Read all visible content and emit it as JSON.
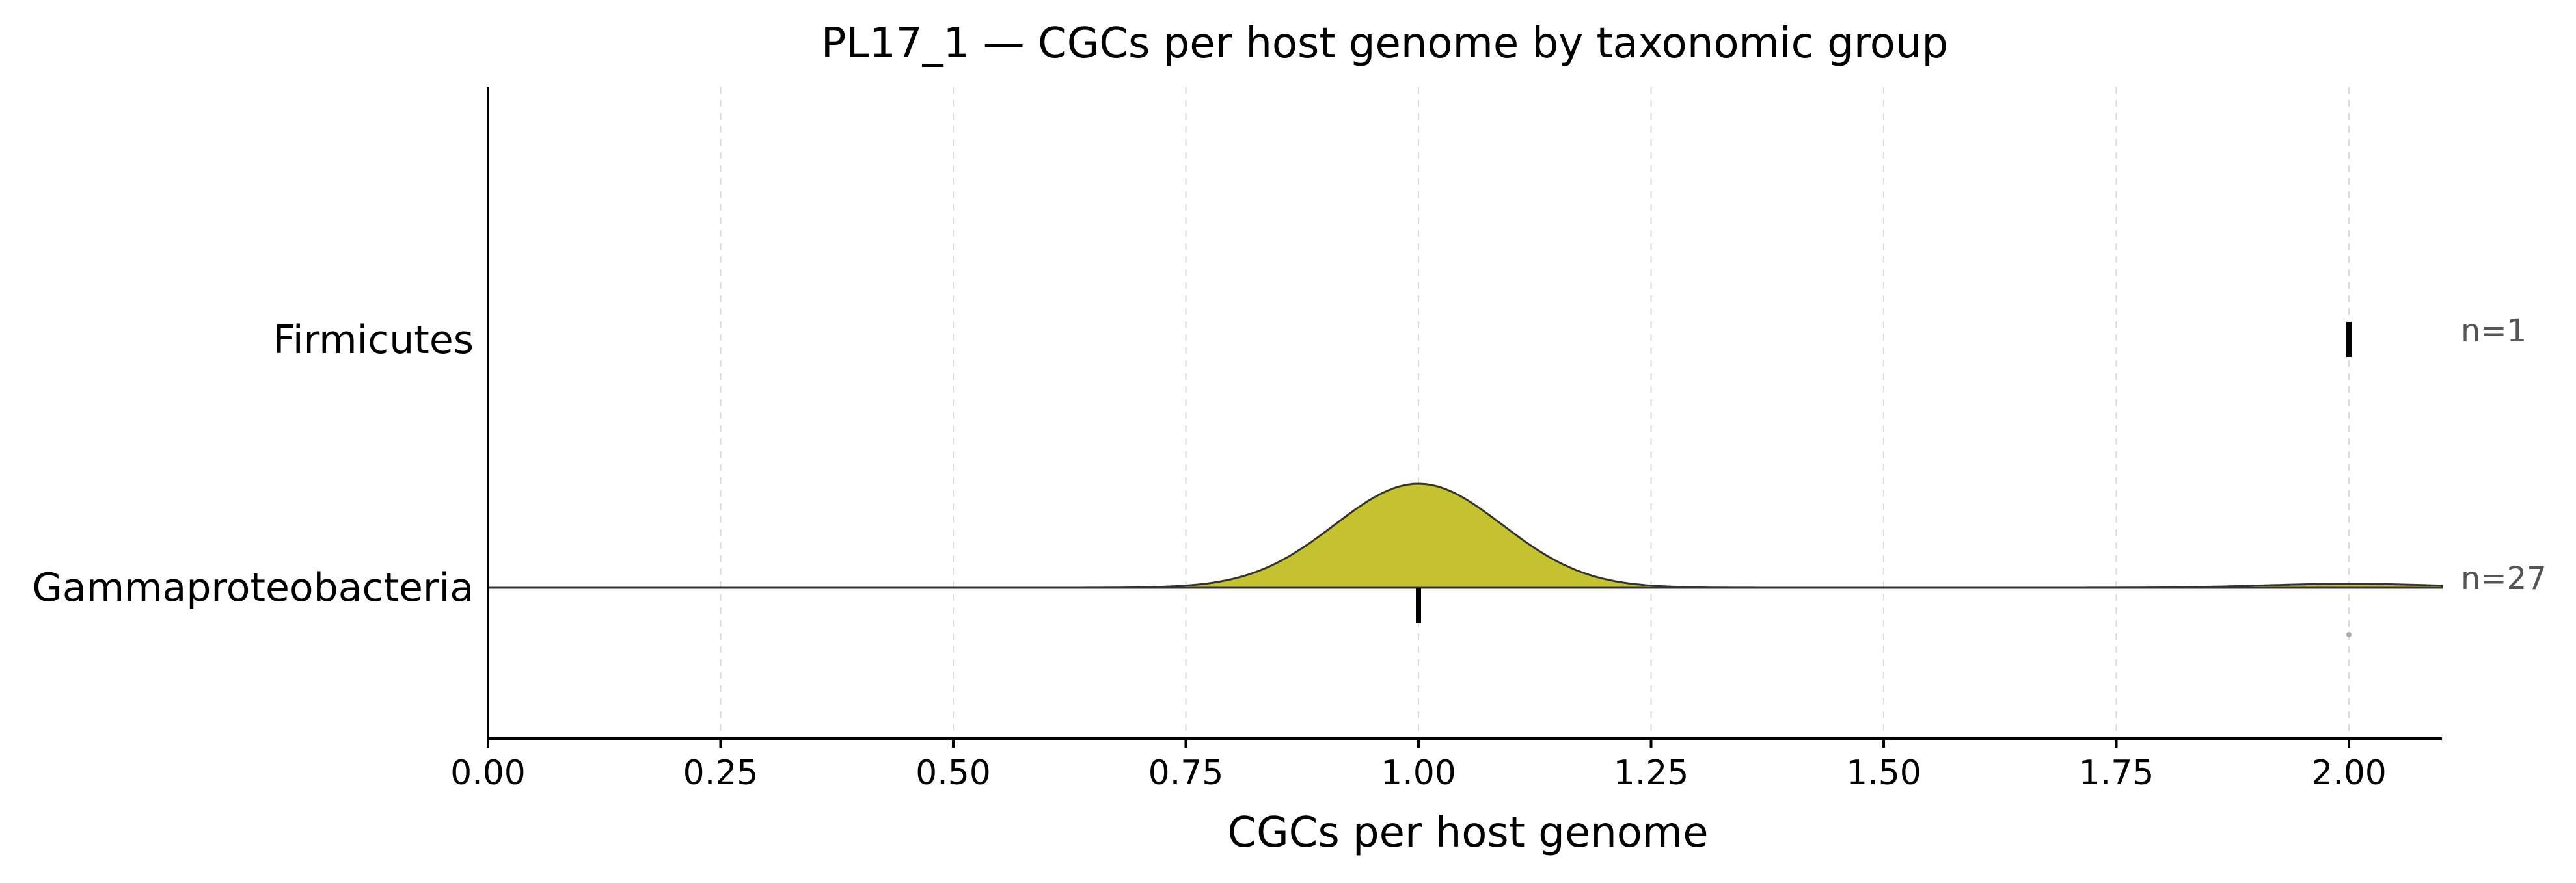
{
  "chart_data": {
    "type": "ridgeline",
    "title": "PL17_1 — CGCs per host genome by taxonomic group",
    "xlabel": "CGCs per host genome",
    "ylabel": "",
    "xlim": [
      0,
      2.1
    ],
    "x_ticks": [
      "0.00",
      "0.25",
      "0.50",
      "0.75",
      "1.00",
      "1.25",
      "1.50",
      "1.75",
      "2.00"
    ],
    "grid": "vertical dashed",
    "series": [
      {
        "name": "Firmicutes",
        "n_label": "n=1",
        "n": 1,
        "values": [
          2.0
        ],
        "median": 2.0,
        "fill": null
      },
      {
        "name": "Gammaproteobacteria",
        "n_label": "n=27",
        "n": 27,
        "values": [
          1,
          1,
          1,
          1,
          1,
          1,
          1,
          1,
          1,
          1,
          1,
          1,
          1,
          1,
          1,
          1,
          1,
          1,
          1,
          1,
          1,
          1,
          1,
          1,
          1,
          1,
          2
        ],
        "median": 1.0,
        "fill": "#c4c22f",
        "outliers": [
          2.0
        ]
      }
    ]
  }
}
